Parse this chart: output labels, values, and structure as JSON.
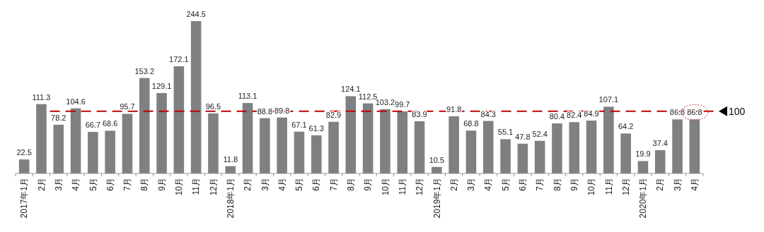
{
  "chart_data": {
    "type": "bar",
    "categories": [
      "2017年1月",
      "2月",
      "3月",
      "4月",
      "5月",
      "6月",
      "7月",
      "8月",
      "9月",
      "10月",
      "11月",
      "12月",
      "2018年1月",
      "2月",
      "3月",
      "4月",
      "5月",
      "6月",
      "7月",
      "8月",
      "9月",
      "10月",
      "11月",
      "12月",
      "2019年1月",
      "2月",
      "3月",
      "4月",
      "5月",
      "6月",
      "7月",
      "8月",
      "9月",
      "10月",
      "11月",
      "12月",
      "2020年1月",
      "2月",
      "3月",
      "4月"
    ],
    "values": [
      22.5,
      111.3,
      78.2,
      104.6,
      66.7,
      68.6,
      95.7,
      153.2,
      129.1,
      172.1,
      244.5,
      96.5,
      11.8,
      113.1,
      88.8,
      89.8,
      67.1,
      61.3,
      82.9,
      124.1,
      112.5,
      103.2,
      99.7,
      83.9,
      10.5,
      91.8,
      68.8,
      84.3,
      55.1,
      47.8,
      52.4,
      80.4,
      82.4,
      84.9,
      107.1,
      64.2,
      19.9,
      37.4,
      86.8,
      86.8
    ],
    "color": "#808080",
    "data_labels": true,
    "ref_lines": [
      {
        "axis": "y",
        "value": 100,
        "label": "100",
        "color": "#c00000",
        "line_style": "dashed"
      }
    ]
  }
}
